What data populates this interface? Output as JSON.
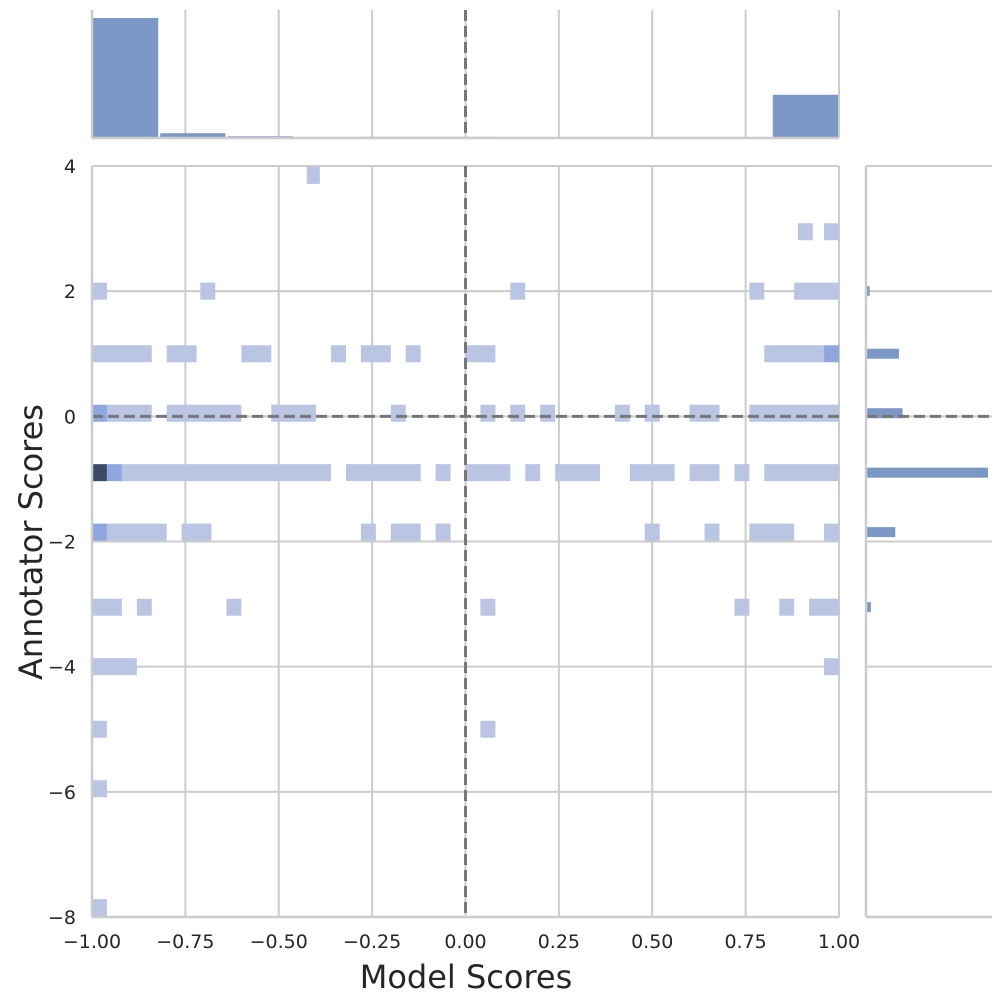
{
  "chart_data": {
    "type": "heatmap",
    "subtype": "jointplot-2d-histogram-with-marginals",
    "title": "",
    "xlabel": "Model Scores",
    "ylabel": "Annotator Scores",
    "xlim": [
      -1.0,
      1.0
    ],
    "ylim": [
      -8,
      4
    ],
    "x_ticks": [
      -1.0,
      -0.75,
      -0.5,
      -0.25,
      0.0,
      0.25,
      0.5,
      0.75,
      1.0
    ],
    "x_tick_labels": [
      "−1.00",
      "−0.75",
      "−0.50",
      "−0.25",
      "0.00",
      "0.25",
      "0.50",
      "0.75",
      "1.00"
    ],
    "y_ticks": [
      -8,
      -6,
      -4,
      -2,
      0,
      2,
      4
    ],
    "y_tick_labels": [
      "−8",
      "−6",
      "−4",
      "−2",
      "0",
      "2",
      "4"
    ],
    "grid": true,
    "reference_lines": {
      "x": 0.0,
      "y": 0.0,
      "style": "dashed",
      "color": "#777777"
    },
    "colors": {
      "light": "#bac5e3",
      "medium": "#8fa6e0",
      "dark": "#3d4a66",
      "marginal": "#7b98c6",
      "grid": "#cccccc"
    },
    "joint_cells": [
      {
        "x0": -0.425,
        "x1": -0.39,
        "y": 3.85,
        "level": 1
      },
      {
        "x0": 0.89,
        "x1": 0.93,
        "y": 2.95,
        "level": 1
      },
      {
        "x0": 0.96,
        "x1": 1.0,
        "y": 2.95,
        "level": 1
      },
      {
        "x0": -1.0,
        "x1": -0.96,
        "y": 2.0,
        "level": 1
      },
      {
        "x0": -0.71,
        "x1": -0.67,
        "y": 2.0,
        "level": 1
      },
      {
        "x0": 0.12,
        "x1": 0.16,
        "y": 2.0,
        "level": 1
      },
      {
        "x0": 0.76,
        "x1": 0.8,
        "y": 2.0,
        "level": 1
      },
      {
        "x0": 0.88,
        "x1": 1.0,
        "y": 2.0,
        "level": 1
      },
      {
        "x0": -1.0,
        "x1": -0.84,
        "y": 1.0,
        "level": 1
      },
      {
        "x0": -0.8,
        "x1": -0.72,
        "y": 1.0,
        "level": 1
      },
      {
        "x0": -0.6,
        "x1": -0.52,
        "y": 1.0,
        "level": 1
      },
      {
        "x0": -0.36,
        "x1": -0.32,
        "y": 1.0,
        "level": 1
      },
      {
        "x0": -0.28,
        "x1": -0.2,
        "y": 1.0,
        "level": 1
      },
      {
        "x0": -0.16,
        "x1": -0.12,
        "y": 1.0,
        "level": 1
      },
      {
        "x0": 0.0,
        "x1": 0.08,
        "y": 1.0,
        "level": 1
      },
      {
        "x0": 0.8,
        "x1": 0.96,
        "y": 1.0,
        "level": 1
      },
      {
        "x0": 0.96,
        "x1": 1.0,
        "y": 1.0,
        "level": 2
      },
      {
        "x0": -1.0,
        "x1": -0.96,
        "y": 0.05,
        "level": 2
      },
      {
        "x0": -0.96,
        "x1": -0.84,
        "y": 0.05,
        "level": 1
      },
      {
        "x0": -0.8,
        "x1": -0.6,
        "y": 0.05,
        "level": 1
      },
      {
        "x0": -0.52,
        "x1": -0.4,
        "y": 0.05,
        "level": 1
      },
      {
        "x0": -0.2,
        "x1": -0.16,
        "y": 0.05,
        "level": 1
      },
      {
        "x0": 0.04,
        "x1": 0.08,
        "y": 0.05,
        "level": 1
      },
      {
        "x0": 0.12,
        "x1": 0.16,
        "y": 0.05,
        "level": 1
      },
      {
        "x0": 0.2,
        "x1": 0.24,
        "y": 0.05,
        "level": 1
      },
      {
        "x0": 0.4,
        "x1": 0.44,
        "y": 0.05,
        "level": 1
      },
      {
        "x0": 0.48,
        "x1": 0.52,
        "y": 0.05,
        "level": 1
      },
      {
        "x0": 0.6,
        "x1": 0.68,
        "y": 0.05,
        "level": 1
      },
      {
        "x0": 0.76,
        "x1": 1.0,
        "y": 0.05,
        "level": 1
      },
      {
        "x0": -1.0,
        "x1": -0.96,
        "y": -0.9,
        "level": 3
      },
      {
        "x0": -0.96,
        "x1": -0.92,
        "y": -0.9,
        "level": 2
      },
      {
        "x0": -0.92,
        "x1": -0.36,
        "y": -0.9,
        "level": 1
      },
      {
        "x0": -0.32,
        "x1": -0.12,
        "y": -0.9,
        "level": 1
      },
      {
        "x0": -0.08,
        "x1": -0.04,
        "y": -0.9,
        "level": 1
      },
      {
        "x0": 0.0,
        "x1": 0.12,
        "y": -0.9,
        "level": 1
      },
      {
        "x0": 0.16,
        "x1": 0.2,
        "y": -0.9,
        "level": 1
      },
      {
        "x0": 0.24,
        "x1": 0.36,
        "y": -0.9,
        "level": 1
      },
      {
        "x0": 0.44,
        "x1": 0.56,
        "y": -0.9,
        "level": 1
      },
      {
        "x0": 0.6,
        "x1": 0.68,
        "y": -0.9,
        "level": 1
      },
      {
        "x0": 0.72,
        "x1": 0.76,
        "y": -0.9,
        "level": 1
      },
      {
        "x0": 0.8,
        "x1": 0.96,
        "y": -0.9,
        "level": 1
      },
      {
        "x0": 0.96,
        "x1": 1.0,
        "y": -0.9,
        "level": 1
      },
      {
        "x0": -1.0,
        "x1": -0.96,
        "y": -1.85,
        "level": 2
      },
      {
        "x0": -0.96,
        "x1": -0.8,
        "y": -1.85,
        "level": 1
      },
      {
        "x0": -0.76,
        "x1": -0.68,
        "y": -1.85,
        "level": 1
      },
      {
        "x0": -0.28,
        "x1": -0.24,
        "y": -1.85,
        "level": 1
      },
      {
        "x0": -0.2,
        "x1": -0.12,
        "y": -1.85,
        "level": 1
      },
      {
        "x0": -0.08,
        "x1": -0.04,
        "y": -1.85,
        "level": 1
      },
      {
        "x0": 0.48,
        "x1": 0.52,
        "y": -1.85,
        "level": 1
      },
      {
        "x0": 0.64,
        "x1": 0.68,
        "y": -1.85,
        "level": 1
      },
      {
        "x0": 0.76,
        "x1": 0.88,
        "y": -1.85,
        "level": 1
      },
      {
        "x0": 0.96,
        "x1": 1.0,
        "y": -1.85,
        "level": 1
      },
      {
        "x0": -1.0,
        "x1": -0.92,
        "y": -3.05,
        "level": 1
      },
      {
        "x0": -0.88,
        "x1": -0.84,
        "y": -3.05,
        "level": 1
      },
      {
        "x0": -0.64,
        "x1": -0.6,
        "y": -3.05,
        "level": 1
      },
      {
        "x0": 0.04,
        "x1": 0.08,
        "y": -3.05,
        "level": 1
      },
      {
        "x0": 0.72,
        "x1": 0.76,
        "y": -3.05,
        "level": 1
      },
      {
        "x0": 0.84,
        "x1": 0.88,
        "y": -3.05,
        "level": 1
      },
      {
        "x0": 0.92,
        "x1": 1.0,
        "y": -3.05,
        "level": 1
      },
      {
        "x0": -1.0,
        "x1": -0.88,
        "y": -4.0,
        "level": 1
      },
      {
        "x0": 0.96,
        "x1": 1.0,
        "y": -4.0,
        "level": 1
      },
      {
        "x0": -1.0,
        "x1": -0.96,
        "y": -5.0,
        "level": 1
      },
      {
        "x0": 0.04,
        "x1": 0.08,
        "y": -5.0,
        "level": 1
      },
      {
        "x0": -1.0,
        "x1": -0.96,
        "y": -5.95,
        "level": 1
      },
      {
        "x0": -1.0,
        "x1": -0.96,
        "y": -7.85,
        "level": 1
      }
    ],
    "marginal_x": {
      "bins": [
        {
          "x0": -1.0,
          "x1": -0.82,
          "count": 100
        },
        {
          "x0": -0.82,
          "x1": -0.64,
          "count": 4
        },
        {
          "x0": -0.64,
          "x1": -0.46,
          "count": 1.5
        },
        {
          "x0": -0.28,
          "x1": -0.1,
          "count": 1
        },
        {
          "x0": -0.1,
          "x1": 0.09,
          "count": 1
        },
        {
          "x0": 0.82,
          "x1": 1.0,
          "count": 36
        }
      ]
    },
    "marginal_y": {
      "bins": [
        {
          "y": 2.0,
          "count": 3
        },
        {
          "y": 1.0,
          "count": 27
        },
        {
          "y": 0.05,
          "count": 30
        },
        {
          "y": -0.9,
          "count": 100
        },
        {
          "y": -1.85,
          "count": 24
        },
        {
          "y": -3.05,
          "count": 4
        },
        {
          "y": -4.0,
          "count": 0.5
        },
        {
          "y": -5.0,
          "count": 0.5
        },
        {
          "y": -5.95,
          "count": 0.5
        },
        {
          "y": -7.85,
          "count": 0.5
        }
      ]
    }
  }
}
